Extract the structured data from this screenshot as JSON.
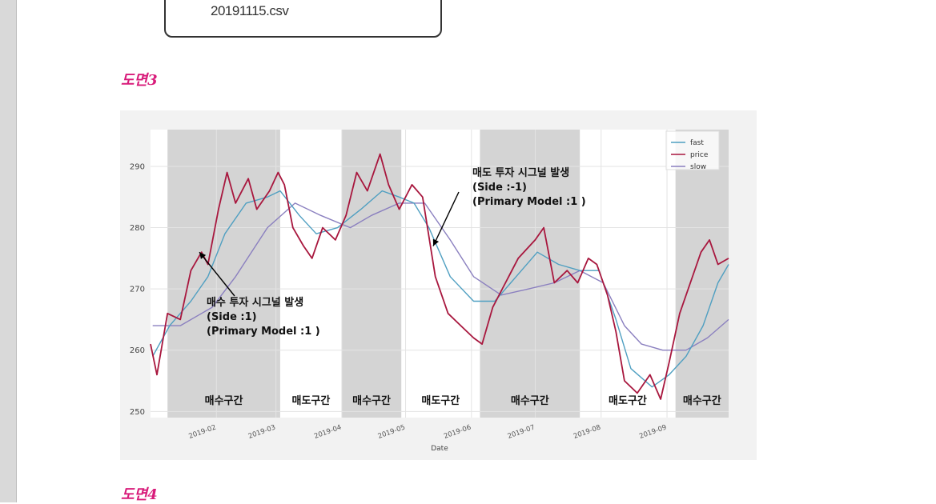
{
  "file_box": {
    "label": "20191115.csv"
  },
  "captions": {
    "figure3": "도면3",
    "figure4": "도면4"
  },
  "chart_data": {
    "type": "line",
    "title": "",
    "xlabel": "Date",
    "ylabel": "",
    "ylim": [
      249,
      296
    ],
    "yticks": [
      250,
      260,
      270,
      280,
      290
    ],
    "xlim": [
      "2019-01-01",
      "2019-09-30"
    ],
    "xticks": [
      "2019-02",
      "2019-03",
      "2019-04",
      "2019-05",
      "2019-06",
      "2019-07",
      "2019-08",
      "2019-09"
    ],
    "grid": true,
    "legend_position": "top-right",
    "colors": {
      "fast": "#4f9fc1",
      "price": "#a8173e",
      "slow": "#8a7fbf",
      "shade": "#d4d4d4"
    },
    "series": [
      {
        "name": "fast",
        "points": [
          [
            "2019-01-02",
            259
          ],
          [
            "2019-01-10",
            264
          ],
          [
            "2019-01-20",
            268
          ],
          [
            "2019-01-28",
            272
          ],
          [
            "2019-02-05",
            279
          ],
          [
            "2019-02-15",
            284
          ],
          [
            "2019-02-25",
            285
          ],
          [
            "2019-03-03",
            286
          ],
          [
            "2019-03-12",
            282
          ],
          [
            "2019-03-20",
            279
          ],
          [
            "2019-03-30",
            280
          ],
          [
            "2019-04-10",
            283
          ],
          [
            "2019-04-20",
            286
          ],
          [
            "2019-04-28",
            285
          ],
          [
            "2019-05-05",
            284
          ],
          [
            "2019-05-12",
            280
          ],
          [
            "2019-05-22",
            272
          ],
          [
            "2019-06-02",
            268
          ],
          [
            "2019-06-12",
            268
          ],
          [
            "2019-06-22",
            272
          ],
          [
            "2019-07-02",
            276
          ],
          [
            "2019-07-12",
            274
          ],
          [
            "2019-07-22",
            273
          ],
          [
            "2019-07-31",
            273
          ],
          [
            "2019-08-08",
            265
          ],
          [
            "2019-08-15",
            257
          ],
          [
            "2019-08-25",
            254
          ],
          [
            "2019-09-02",
            256
          ],
          [
            "2019-09-10",
            259
          ],
          [
            "2019-09-18",
            264
          ],
          [
            "2019-09-25",
            271
          ],
          [
            "2019-09-30",
            274
          ]
        ]
      },
      {
        "name": "price",
        "points": [
          [
            "2019-01-01",
            261
          ],
          [
            "2019-01-04",
            256
          ],
          [
            "2019-01-09",
            266
          ],
          [
            "2019-01-15",
            265
          ],
          [
            "2019-01-20",
            273
          ],
          [
            "2019-01-25",
            276
          ],
          [
            "2019-01-28",
            274
          ],
          [
            "2019-02-02",
            283
          ],
          [
            "2019-02-06",
            289
          ],
          [
            "2019-02-10",
            284
          ],
          [
            "2019-02-16",
            288
          ],
          [
            "2019-02-20",
            283
          ],
          [
            "2019-02-26",
            286
          ],
          [
            "2019-03-02",
            289
          ],
          [
            "2019-03-05",
            287
          ],
          [
            "2019-03-09",
            280
          ],
          [
            "2019-03-14",
            277
          ],
          [
            "2019-03-18",
            275
          ],
          [
            "2019-03-23",
            280
          ],
          [
            "2019-03-29",
            278
          ],
          [
            "2019-04-03",
            282
          ],
          [
            "2019-04-08",
            289
          ],
          [
            "2019-04-13",
            286
          ],
          [
            "2019-04-19",
            292
          ],
          [
            "2019-04-23",
            287
          ],
          [
            "2019-04-28",
            283
          ],
          [
            "2019-05-04",
            287
          ],
          [
            "2019-05-09",
            285
          ],
          [
            "2019-05-15",
            272
          ],
          [
            "2019-05-21",
            266
          ],
          [
            "2019-05-27",
            264
          ],
          [
            "2019-06-02",
            262
          ],
          [
            "2019-06-06",
            261
          ],
          [
            "2019-06-11",
            267
          ],
          [
            "2019-06-17",
            271
          ],
          [
            "2019-06-23",
            275
          ],
          [
            "2019-07-01",
            278
          ],
          [
            "2019-07-05",
            280
          ],
          [
            "2019-07-10",
            271
          ],
          [
            "2019-07-16",
            273
          ],
          [
            "2019-07-21",
            271
          ],
          [
            "2019-07-26",
            275
          ],
          [
            "2019-07-30",
            274
          ],
          [
            "2019-08-04",
            269
          ],
          [
            "2019-08-08",
            263
          ],
          [
            "2019-08-12",
            255
          ],
          [
            "2019-08-18",
            253
          ],
          [
            "2019-08-24",
            256
          ],
          [
            "2019-08-29",
            252
          ],
          [
            "2019-09-02",
            258
          ],
          [
            "2019-09-07",
            266
          ],
          [
            "2019-09-12",
            271
          ],
          [
            "2019-09-17",
            276
          ],
          [
            "2019-09-21",
            278
          ],
          [
            "2019-09-25",
            274
          ],
          [
            "2019-09-30",
            275
          ]
        ]
      },
      {
        "name": "slow",
        "points": [
          [
            "2019-01-02",
            264
          ],
          [
            "2019-01-15",
            264
          ],
          [
            "2019-01-30",
            267
          ],
          [
            "2019-02-10",
            272
          ],
          [
            "2019-02-25",
            280
          ],
          [
            "2019-03-10",
            284
          ],
          [
            "2019-03-22",
            282
          ],
          [
            "2019-04-05",
            280
          ],
          [
            "2019-04-15",
            282
          ],
          [
            "2019-04-28",
            284
          ],
          [
            "2019-05-10",
            284
          ],
          [
            "2019-05-22",
            278
          ],
          [
            "2019-06-02",
            272
          ],
          [
            "2019-06-15",
            269
          ],
          [
            "2019-06-28",
            270
          ],
          [
            "2019-07-10",
            271
          ],
          [
            "2019-07-22",
            273
          ],
          [
            "2019-08-02",
            271
          ],
          [
            "2019-08-12",
            264
          ],
          [
            "2019-08-20",
            261
          ],
          [
            "2019-08-30",
            260
          ],
          [
            "2019-09-10",
            260
          ],
          [
            "2019-09-20",
            262
          ],
          [
            "2019-09-30",
            265
          ]
        ]
      }
    ],
    "regions": [
      {
        "start": "2019-01-09",
        "end": "2019-03-03",
        "shaded": true,
        "label": "매수구간"
      },
      {
        "start": "2019-03-03",
        "end": "2019-04-01",
        "shaded": false,
        "label": "매도구간"
      },
      {
        "start": "2019-04-01",
        "end": "2019-04-29",
        "shaded": true,
        "label": "매수구간"
      },
      {
        "start": "2019-04-29",
        "end": "2019-06-05",
        "shaded": false,
        "label": "매도구간"
      },
      {
        "start": "2019-06-05",
        "end": "2019-07-22",
        "shaded": true,
        "label": "매수구간"
      },
      {
        "start": "2019-07-22",
        "end": "2019-09-05",
        "shaded": false,
        "label": "매도구간"
      },
      {
        "start": "2019-09-05",
        "end": "2019-09-30",
        "shaded": true,
        "label": "매수구간"
      }
    ],
    "annotations": [
      {
        "lines": [
          "매수 투자 시그널 발생",
          "(Side :1)",
          "(Primary Model :1 )"
        ],
        "arrow_to": [
          "2019-01-24",
          276
        ]
      },
      {
        "lines": [
          "매도 투자 시그널 발생",
          "(Side :-1)",
          "(Primary Model :1 )"
        ],
        "arrow_to": [
          "2019-05-14",
          277
        ]
      }
    ]
  }
}
